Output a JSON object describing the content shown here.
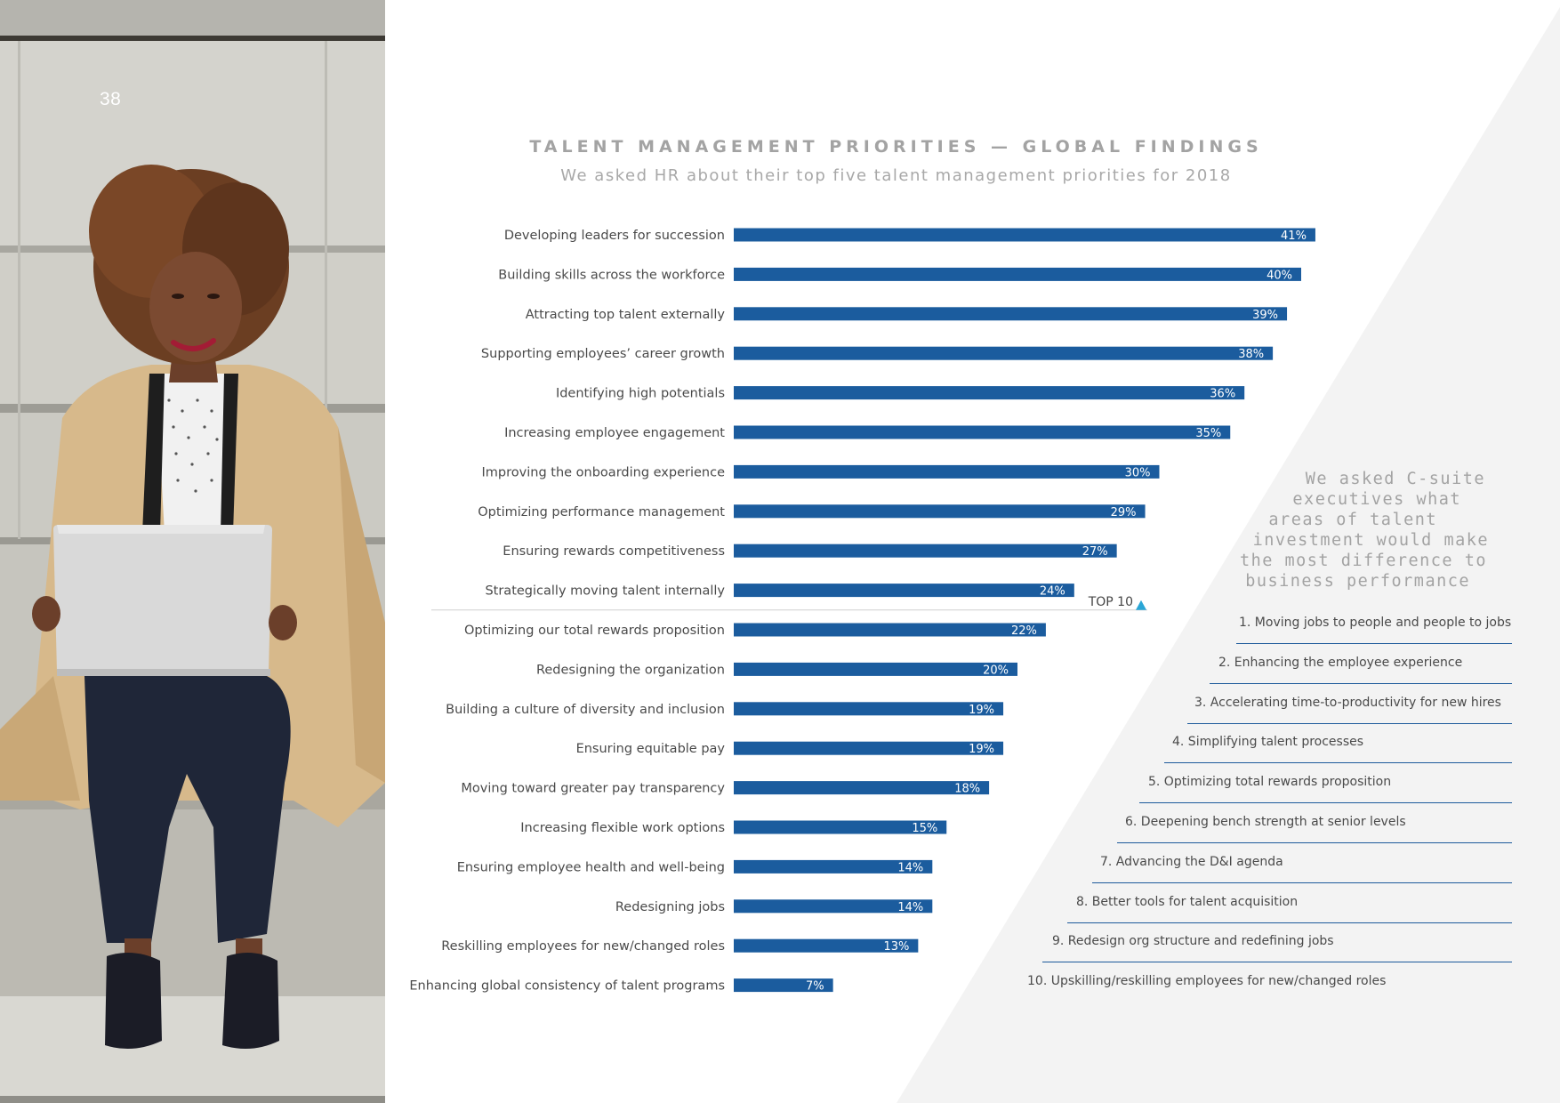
{
  "page": {
    "number": "38"
  },
  "colors": {
    "bar": "#1b5c9e",
    "triangle": "#f3f3f3",
    "accent_triangle": "#2aa6d6",
    "rule": "#1d5a9b"
  },
  "chart_data": {
    "type": "bar",
    "orientation": "horizontal",
    "title": "TALENT MANAGEMENT PRIORITIES — GLOBAL FINDINGS",
    "subtitle": "We asked HR about their top five talent management priorities for 2018",
    "xlabel": "",
    "ylabel": "",
    "xlim": [
      0,
      41
    ],
    "grid": false,
    "categories": [
      "Developing leaders for succession",
      "Building skills across the workforce",
      "Attracting top talent externally",
      "Supporting employees’ career growth",
      "Identifying high potentials",
      "Increasing employee engagement",
      "Improving the onboarding experience",
      "Optimizing performance management",
      "Ensuring rewards competitiveness",
      "Strategically moving talent internally",
      "Optimizing our total rewards proposition",
      "Redesigning the organization",
      "Building a culture of diversity and inclusion",
      "Ensuring equitable pay",
      "Moving toward greater pay transparency",
      "Increasing flexible work options",
      "Ensuring employee health and well-being",
      "Redesigning jobs",
      "Reskilling employees for new/changed roles",
      "Enhancing global consistency of talent programs"
    ],
    "values": [
      41,
      40,
      39,
      38,
      36,
      35,
      30,
      29,
      27,
      24,
      22,
      20,
      19,
      19,
      18,
      15,
      14,
      14,
      13,
      7
    ],
    "value_labels": [
      "41%",
      "40%",
      "39%",
      "38%",
      "36%",
      "35%",
      "30%",
      "29%",
      "27%",
      "24%",
      "22%",
      "20%",
      "19%",
      "19%",
      "18%",
      "15%",
      "14%",
      "14%",
      "13%",
      "7%"
    ],
    "annotation": {
      "text": "TOP 10",
      "after_index": 9
    }
  },
  "csuite": {
    "heading_lines": [
      "We asked C-suite",
      "executives what",
      "areas of talent",
      "investment would make",
      "the most difference to",
      "business performance"
    ],
    "items": [
      "1. Moving jobs to people and people to jobs",
      "2. Enhancing the employee experience",
      "3. Accelerating time-to-productivity for new hires",
      "4. Simplifying talent processes",
      "5. Optimizing total rewards proposition",
      "6. Deepening bench strength at senior levels",
      "7. Advancing the D&I agenda",
      "8. Better tools for talent acquisition",
      "9. Redesign org structure and redefining jobs",
      "10. Upskilling/reskilling employees for new/changed roles"
    ]
  }
}
